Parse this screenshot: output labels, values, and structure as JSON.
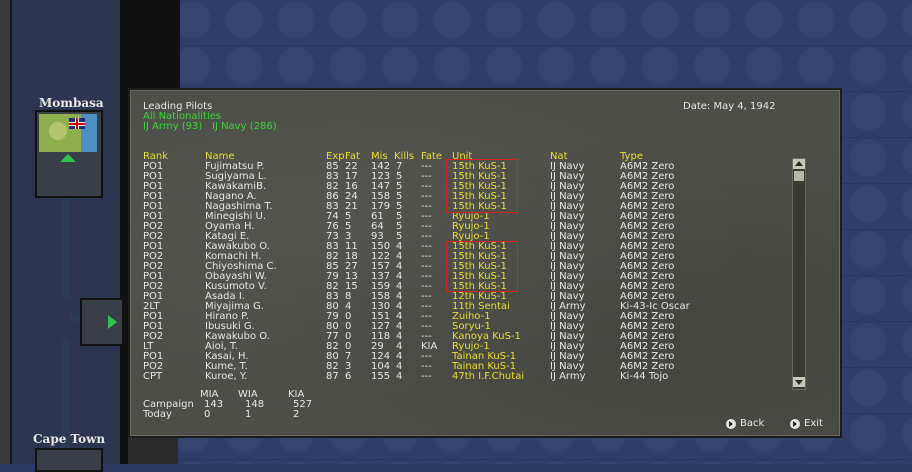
{
  "map": {
    "locations": [
      {
        "name": "Mombasa"
      },
      {
        "name": "Cape Town"
      }
    ]
  },
  "dialog": {
    "title": "Leading Pilots",
    "date_label": "Date: May 4, 1942",
    "filter_nationality": "All Nationalities",
    "filter_army": "IJ Army (93)",
    "filter_navy": "IJ Navy (286)",
    "columns": {
      "rank": "Rank",
      "name": "Name",
      "exp": "Exp",
      "fat": "Fat",
      "mis": "Mis",
      "kills": "Kills",
      "fate": "Fate",
      "unit": "Unit",
      "nat": "Nat",
      "type": "Type"
    },
    "rows": [
      [
        "PO1",
        "Fujimatsu P.",
        "85",
        "22",
        "142",
        "7",
        "---",
        "15th KuS-1",
        "IJ Navy",
        "A6M2 Zero"
      ],
      [
        "PO1",
        "Sugiyama L.",
        "83",
        "17",
        "123",
        "5",
        "---",
        "15th KuS-1",
        "IJ Navy",
        "A6M2 Zero"
      ],
      [
        "PO1",
        "KawakamiB.",
        "82",
        "16",
        "147",
        "5",
        "---",
        "15th KuS-1",
        "IJ Navy",
        "A6M2 Zero"
      ],
      [
        "PO1",
        "Nagano A.",
        "86",
        "24",
        "158",
        "5",
        "---",
        "15th KuS-1",
        "IJ Navy",
        "A6M2 Zero"
      ],
      [
        "PO1",
        "Nagashima T.",
        "83",
        "21",
        "179",
        "5",
        "---",
        "15th KuS-1",
        "IJ Navy",
        "A6M2 Zero"
      ],
      [
        "PO1",
        "Minegishi U.",
        "74",
        "5",
        "61",
        "5",
        "---",
        "Ryujo-1",
        "IJ Navy",
        "A6M2 Zero"
      ],
      [
        "PO2",
        "Oyama H.",
        "76",
        "5",
        "64",
        "5",
        "---",
        "Ryujo-1",
        "IJ Navy",
        "A6M2 Zero"
      ],
      [
        "PO2",
        "Katagi E.",
        "73",
        "3",
        "93",
        "5",
        "---",
        "Ryujo-1",
        "IJ Navy",
        "A6M2 Zero"
      ],
      [
        "PO1",
        "Kawakubo O.",
        "83",
        "11",
        "150",
        "4",
        "---",
        "15th KuS-1",
        "IJ Navy",
        "A6M2 Zero"
      ],
      [
        "PO2",
        "Komachi H.",
        "82",
        "18",
        "122",
        "4",
        "---",
        "15th KuS-1",
        "IJ Navy",
        "A6M2 Zero"
      ],
      [
        "PO2",
        "Chiyoshima C.",
        "85",
        "27",
        "157",
        "4",
        "---",
        "15th KuS-1",
        "IJ Navy",
        "A6M2 Zero"
      ],
      [
        "PO1",
        "Obayashi W.",
        "79",
        "13",
        "137",
        "4",
        "---",
        "15th KuS-1",
        "IJ Navy",
        "A6M2 Zero"
      ],
      [
        "PO2",
        "Kusumoto V.",
        "82",
        "15",
        "159",
        "4",
        "---",
        "15th KuS-1",
        "IJ Navy",
        "A6M2 Zero"
      ],
      [
        "PO1",
        "Asada I.",
        "83",
        "8",
        "158",
        "4",
        "---",
        "12th KuS-1",
        "IJ Navy",
        "A6M2 Zero"
      ],
      [
        "2LT",
        "Miyajima G.",
        "80",
        "4",
        "130",
        "4",
        "---",
        "11th Sentai",
        "IJ Army",
        "Ki-43-Ic Oscar"
      ],
      [
        "PO1",
        "Hirano P.",
        "79",
        "0",
        "151",
        "4",
        "---",
        "Zuiho-1",
        "IJ Navy",
        "A6M2 Zero"
      ],
      [
        "PO1",
        "Ibusuki G.",
        "80",
        "0",
        "127",
        "4",
        "---",
        "Soryu-1",
        "IJ Navy",
        "A6M2 Zero"
      ],
      [
        "PO2",
        "Kawakubo O.",
        "77",
        "0",
        "118",
        "4",
        "---",
        "Kanoya KuS-1",
        "IJ Navy",
        "A6M2 Zero"
      ],
      [
        "LT",
        "Aioi, T.",
        "82",
        "0",
        "29",
        "4",
        "KIA",
        "Ryujo-1",
        "IJ Navy",
        "A6M2 Zero"
      ],
      [
        "PO1",
        "Kasai, H.",
        "80",
        "7",
        "124",
        "4",
        "---",
        "Tainan KuS-1",
        "IJ Navy",
        "A6M2 Zero"
      ],
      [
        "PO2",
        "Kume, T.",
        "82",
        "3",
        "104",
        "4",
        "---",
        "Tainan KuS-1",
        "IJ Navy",
        "A6M2 Zero"
      ],
      [
        "CPT",
        "Kuroe, Y.",
        "87",
        "6",
        "155",
        "4",
        "---",
        "47th I.F.Chutai",
        "IJ Army",
        "Ki-44 Tojo"
      ]
    ],
    "summary": {
      "headers": [
        "MIA",
        "WIA",
        "KIA"
      ],
      "campaign_label": "Campaign",
      "campaign": [
        "143",
        "148",
        "527"
      ],
      "today_label": "Today",
      "today": [
        "0",
        "1",
        "2"
      ]
    },
    "back_label": "Back",
    "exit_label": "Exit"
  }
}
